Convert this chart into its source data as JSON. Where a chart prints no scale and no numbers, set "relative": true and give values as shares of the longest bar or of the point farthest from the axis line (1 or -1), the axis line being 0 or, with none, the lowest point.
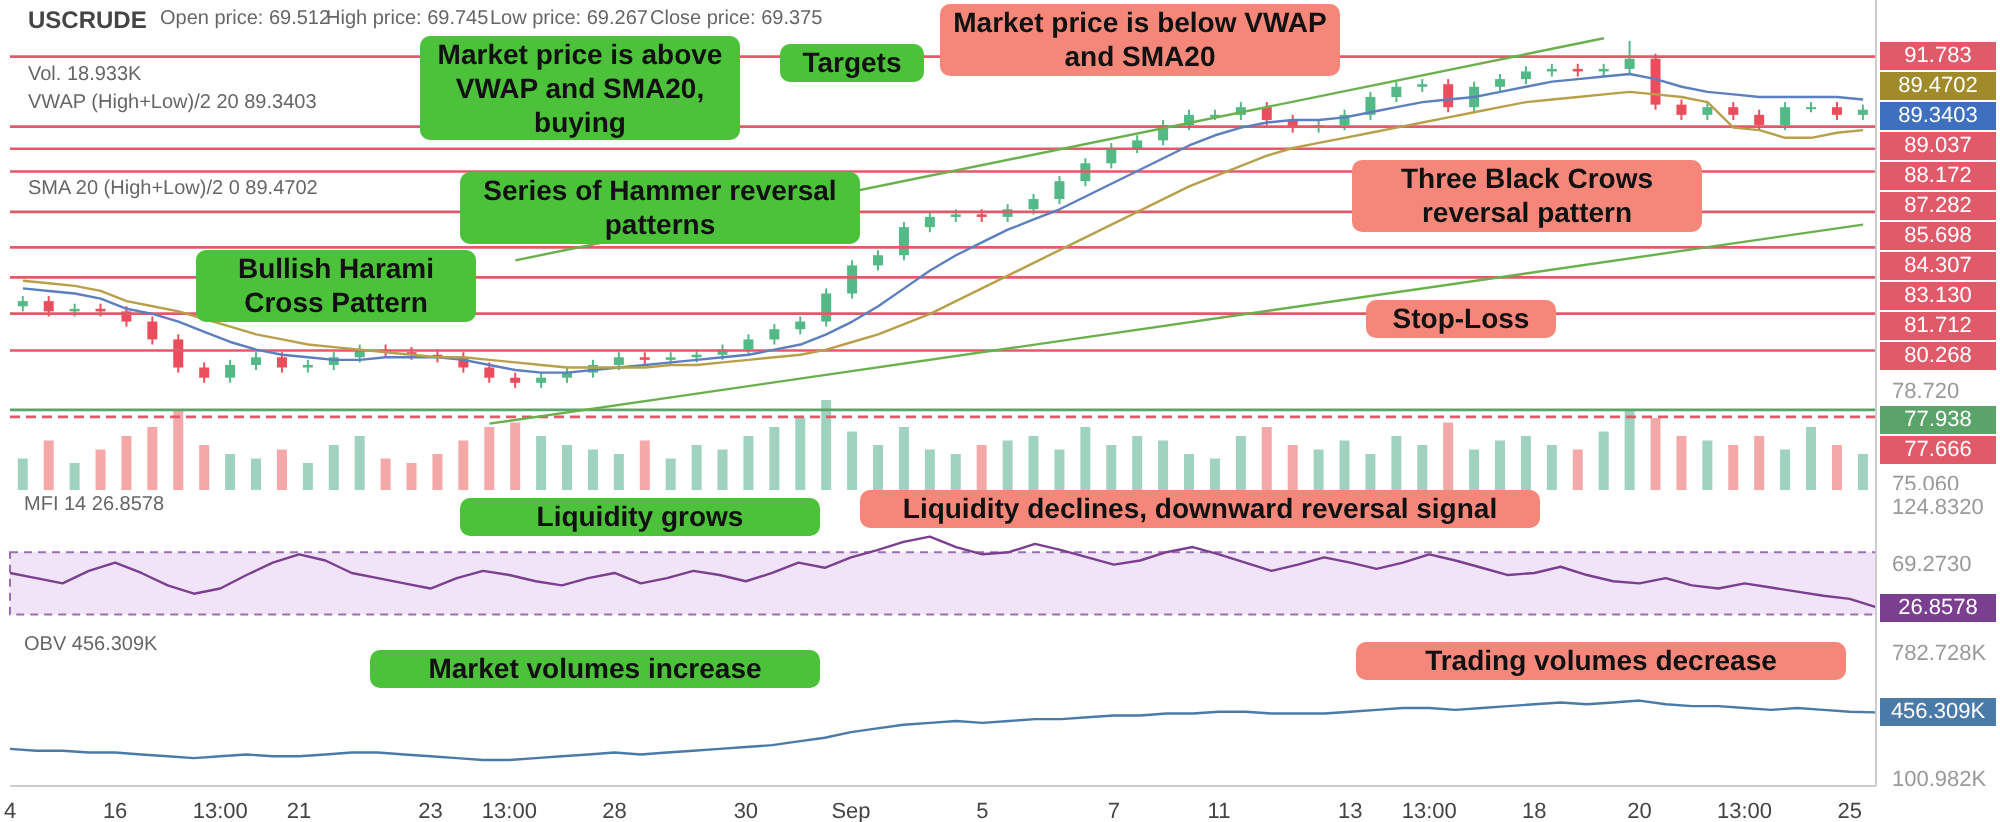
{
  "chart_data": [
    {
      "type": "candlestick",
      "title": "USCRUDE",
      "categories": [
        null,
        null,
        null,
        null,
        null,
        null,
        null,
        null,
        null,
        null,
        null,
        null,
        null,
        null,
        null,
        null,
        null,
        null,
        null,
        null,
        null,
        null,
        null,
        null,
        null,
        null,
        null,
        null,
        null,
        null,
        null,
        null,
        null,
        null,
        null,
        null,
        null,
        null,
        null,
        null,
        null,
        null,
        null,
        null,
        null,
        null,
        null,
        null,
        null,
        null,
        null,
        null,
        null,
        null,
        null,
        null,
        null,
        null,
        null,
        null,
        null,
        null,
        null,
        null,
        null,
        null,
        null,
        null,
        null,
        null,
        null,
        null
      ],
      "ohlc": [
        [
          82.0,
          82.4,
          81.8,
          82.2
        ],
        [
          82.2,
          82.4,
          81.6,
          81.8
        ],
        [
          81.8,
          82.1,
          81.6,
          81.9
        ],
        [
          81.9,
          82.1,
          81.6,
          81.8
        ],
        [
          81.8,
          82.0,
          81.2,
          81.4
        ],
        [
          81.4,
          81.6,
          80.5,
          80.7
        ],
        [
          80.7,
          80.9,
          79.4,
          79.6
        ],
        [
          79.6,
          79.8,
          79.0,
          79.2
        ],
        [
          79.2,
          79.9,
          79.0,
          79.7
        ],
        [
          79.7,
          80.2,
          79.5,
          80.0
        ],
        [
          80.0,
          80.2,
          79.4,
          79.6
        ],
        [
          79.6,
          79.9,
          79.4,
          79.7
        ],
        [
          79.7,
          80.2,
          79.5,
          80.0
        ],
        [
          80.0,
          80.5,
          79.8,
          80.3
        ],
        [
          80.3,
          80.5,
          80.0,
          80.2
        ],
        [
          80.2,
          80.4,
          79.9,
          80.1
        ],
        [
          80.1,
          80.3,
          79.8,
          80.0
        ],
        [
          80.0,
          80.2,
          79.4,
          79.6
        ],
        [
          79.6,
          79.8,
          79.0,
          79.2
        ],
        [
          79.2,
          79.4,
          78.8,
          79.0
        ],
        [
          79.0,
          79.4,
          78.8,
          79.2
        ],
        [
          79.2,
          79.6,
          79.0,
          79.4
        ],
        [
          79.4,
          79.9,
          79.2,
          79.7
        ],
        [
          79.7,
          80.2,
          79.5,
          80.0
        ],
        [
          80.0,
          80.2,
          79.7,
          79.9
        ],
        [
          79.9,
          80.2,
          79.7,
          80.0
        ],
        [
          80.0,
          80.3,
          79.8,
          80.1
        ],
        [
          80.1,
          80.5,
          79.9,
          80.3
        ],
        [
          80.3,
          80.9,
          80.1,
          80.7
        ],
        [
          80.7,
          81.3,
          80.5,
          81.1
        ],
        [
          81.1,
          81.6,
          80.9,
          81.4
        ],
        [
          81.4,
          82.7,
          81.2,
          82.5
        ],
        [
          82.5,
          83.8,
          82.3,
          83.6
        ],
        [
          83.6,
          84.2,
          83.4,
          84.0
        ],
        [
          84.0,
          85.3,
          83.8,
          85.1
        ],
        [
          85.1,
          85.7,
          84.9,
          85.5
        ],
        [
          85.5,
          85.8,
          85.3,
          85.6
        ],
        [
          85.6,
          85.8,
          85.3,
          85.5
        ],
        [
          85.5,
          86.0,
          85.3,
          85.8
        ],
        [
          85.8,
          86.4,
          85.6,
          86.2
        ],
        [
          86.2,
          87.1,
          86.0,
          86.9
        ],
        [
          86.9,
          87.8,
          86.7,
          87.6
        ],
        [
          87.6,
          88.4,
          87.4,
          88.2
        ],
        [
          88.2,
          88.7,
          88.0,
          88.5
        ],
        [
          88.5,
          89.3,
          88.3,
          89.1
        ],
        [
          89.1,
          89.7,
          88.9,
          89.5
        ],
        [
          89.5,
          89.7,
          89.3,
          89.5
        ],
        [
          89.5,
          90.0,
          89.3,
          89.8
        ],
        [
          89.8,
          90.0,
          89.1,
          89.3
        ],
        [
          89.3,
          89.5,
          88.8,
          89.0
        ],
        [
          89.0,
          89.3,
          88.8,
          89.1
        ],
        [
          89.1,
          89.7,
          88.9,
          89.5
        ],
        [
          89.5,
          90.4,
          89.3,
          90.2
        ],
        [
          90.2,
          90.8,
          90.0,
          90.6
        ],
        [
          90.6,
          90.9,
          90.4,
          90.7
        ],
        [
          90.7,
          90.9,
          89.6,
          89.8
        ],
        [
          89.8,
          90.8,
          89.6,
          90.6
        ],
        [
          90.6,
          91.1,
          90.4,
          90.9
        ],
        [
          90.9,
          91.4,
          90.7,
          91.2
        ],
        [
          91.2,
          91.5,
          91.0,
          91.3
        ],
        [
          91.3,
          91.5,
          91.0,
          91.2
        ],
        [
          91.2,
          91.5,
          91.0,
          91.3
        ],
        [
          91.3,
          92.4,
          91.1,
          91.7
        ],
        [
          91.7,
          91.9,
          89.7,
          89.9
        ],
        [
          89.9,
          90.1,
          89.3,
          89.5
        ],
        [
          89.5,
          90.0,
          89.3,
          89.8
        ],
        [
          89.8,
          90.0,
          89.3,
          89.5
        ],
        [
          89.5,
          89.7,
          88.9,
          89.1
        ],
        [
          89.1,
          90.0,
          88.9,
          89.8
        ],
        [
          89.8,
          90.0,
          89.6,
          89.8
        ],
        [
          89.8,
          90.0,
          89.3,
          89.5
        ],
        [
          89.5,
          89.9,
          89.3,
          89.7
        ]
      ],
      "colors": [
        "#53b987",
        "#eb4d5c",
        "#53b987",
        "#eb4d5c",
        "#eb4d5c",
        "#eb4d5c",
        "#eb4d5c",
        "#eb4d5c",
        "#53b987",
        "#53b987",
        "#eb4d5c",
        "#53b987",
        "#53b987",
        "#53b987",
        "#eb4d5c",
        "#eb4d5c",
        "#eb4d5c",
        "#eb4d5c",
        "#eb4d5c",
        "#eb4d5c",
        "#53b987",
        "#53b987",
        "#53b987",
        "#53b987",
        "#eb4d5c",
        "#53b987",
        "#53b987",
        "#53b987",
        "#53b987",
        "#53b987",
        "#53b987",
        "#53b987",
        "#53b987",
        "#53b987",
        "#53b987",
        "#53b987",
        "#53b987",
        "#eb4d5c",
        "#53b987",
        "#53b987",
        "#53b987",
        "#53b987",
        "#53b987",
        "#53b987",
        "#53b987",
        "#53b987",
        "#53b987",
        "#53b987",
        "#eb4d5c",
        "#eb4d5c",
        "#53b987",
        "#53b987",
        "#53b987",
        "#53b987",
        "#53b987",
        "#eb4d5c",
        "#53b987",
        "#53b987",
        "#53b987",
        "#53b987",
        "#eb4d5c",
        "#53b987",
        "#53b987",
        "#eb4d5c",
        "#eb4d5c",
        "#53b987",
        "#eb4d5c",
        "#eb4d5c",
        "#53b987",
        "#53b987",
        "#eb4d5c",
        "#53b987"
      ],
      "series": [
        {
          "type": "line",
          "color": "#5b7fbf",
          "values": [
            82.7,
            82.6,
            82.5,
            82.3,
            81.9,
            81.7,
            81.4,
            81.0,
            80.6,
            80.3,
            80.1,
            80.0,
            79.9,
            79.9,
            80.0,
            80.0,
            80.0,
            79.9,
            79.7,
            79.5,
            79.4,
            79.4,
            79.5,
            79.6,
            79.7,
            79.8,
            79.9,
            80.0,
            80.1,
            80.3,
            80.5,
            80.9,
            81.4,
            82.0,
            82.7,
            83.4,
            84.0,
            84.5,
            85.0,
            85.4,
            85.8,
            86.3,
            86.8,
            87.3,
            87.8,
            88.3,
            88.7,
            89.0,
            89.2,
            89.3,
            89.3,
            89.4,
            89.6,
            89.8,
            90.0,
            90.1,
            90.2,
            90.4,
            90.6,
            90.8,
            90.9,
            91.0,
            91.1,
            90.9,
            90.6,
            90.4,
            90.3,
            90.2,
            90.2,
            90.2,
            90.2,
            90.1
          ]
        },
        {
          "type": "line",
          "color": "#b8a04a",
          "values": [
            83.0,
            82.9,
            82.8,
            82.6,
            82.2,
            82.0,
            81.8,
            81.5,
            81.2,
            80.9,
            80.7,
            80.5,
            80.4,
            80.3,
            80.2,
            80.1,
            80.0,
            80.0,
            79.9,
            79.8,
            79.7,
            79.6,
            79.6,
            79.6,
            79.6,
            79.7,
            79.7,
            79.8,
            79.9,
            80.0,
            80.1,
            80.3,
            80.6,
            80.9,
            81.3,
            81.7,
            82.2,
            82.7,
            83.2,
            83.7,
            84.2,
            84.7,
            85.2,
            85.7,
            86.2,
            86.7,
            87.1,
            87.5,
            87.9,
            88.2,
            88.4,
            88.6,
            88.8,
            89.0,
            89.2,
            89.4,
            89.6,
            89.8,
            90.0,
            90.1,
            90.2,
            90.3,
            90.4,
            90.3,
            90.2,
            90.0,
            89.0,
            88.9,
            88.6,
            88.6,
            88.8,
            88.9
          ]
        },
        {
          "type": "line",
          "color": "#6ab04c",
          "values": [
            null,
            null,
            null,
            null,
            null,
            null,
            null,
            null,
            null,
            null,
            null,
            null,
            null,
            null,
            null,
            null,
            null,
            null,
            null,
            83.8,
            null,
            null,
            null,
            null,
            null,
            null,
            null,
            null,
            null,
            null,
            null,
            null,
            null,
            null,
            null,
            null,
            null,
            null,
            null,
            null,
            null,
            null,
            null,
            null,
            null,
            null,
            null,
            null,
            null,
            null,
            null,
            null,
            null,
            null,
            null,
            null,
            null,
            null,
            null,
            null,
            null,
            92.5,
            null,
            null,
            null,
            null,
            null,
            null,
            null,
            null,
            null,
            null
          ]
        },
        {
          "type": "line",
          "color": "#6ab04c",
          "values": [
            null,
            null,
            null,
            null,
            null,
            null,
            null,
            null,
            null,
            null,
            null,
            null,
            null,
            null,
            null,
            null,
            null,
            null,
            77.4,
            null,
            null,
            null,
            null,
            null,
            null,
            null,
            null,
            null,
            null,
            null,
            null,
            null,
            null,
            null,
            null,
            null,
            null,
            null,
            null,
            null,
            null,
            null,
            null,
            null,
            null,
            null,
            null,
            null,
            null,
            null,
            null,
            null,
            null,
            null,
            null,
            null,
            null,
            null,
            null,
            null,
            null,
            null,
            null,
            null,
            null,
            null,
            null,
            null,
            null,
            null,
            null,
            85.2
          ]
        }
      ],
      "ylim": [
        74.8,
        94
      ],
      "yticks": [
        {
          "value": 78.72,
          "label": "78.720"
        },
        {
          "value": 75.06,
          "label": "75.060"
        }
      ],
      "tick_labels": "y",
      "ref_lines": [
        {
          "axis": "y",
          "value": 91.783,
          "label": "91.783",
          "color": "#e05a6a"
        },
        {
          "axis": "y",
          "value": 89.037,
          "label": "89.037",
          "color": "#e05a6a"
        },
        {
          "axis": "y",
          "value": 88.172,
          "label": "88.172",
          "color": "#e05a6a"
        },
        {
          "axis": "y",
          "value": 87.282,
          "label": "87.282",
          "color": "#e05a6a"
        },
        {
          "axis": "y",
          "value": 85.698,
          "label": "85.698",
          "color": "#e05a6a"
        },
        {
          "axis": "y",
          "value": 84.307,
          "label": "84.307",
          "color": "#e05a6a"
        },
        {
          "axis": "y",
          "value": 83.13,
          "label": "83.130",
          "color": "#e05a6a"
        },
        {
          "axis": "y",
          "value": 81.712,
          "label": "81.712",
          "color": "#e05a6a"
        },
        {
          "axis": "y",
          "value": 80.268,
          "label": "80.268",
          "color": "#e05a6a"
        },
        {
          "axis": "y",
          "value": 77.938,
          "label": "77.938",
          "color": "#5aa469"
        },
        {
          "axis": "y",
          "value": 77.666,
          "label": "77.666",
          "color": "#e05a6a",
          "line_style": "dashed"
        }
      ],
      "annotations": [
        "Open price: 69.512",
        "High price: 69.745",
        "Low price: 69.267",
        "Close price: 69.375",
        "Vol. 18.933K",
        "VWAP (High+Low)/2 20 89.3403",
        "SMA 20 (High+Low)/2 0 89.4702",
        "Market price is above VWAP and SMA20, buying",
        "Targets",
        "Bullish Harami Cross Pattern",
        "Series of Hammer reversal patterns",
        "Market price is below VWAP and SMA20",
        "Three Black Crows reversal pattern",
        "Stop-Loss",
        "89.4702",
        "89.3403"
      ]
    },
    {
      "type": "bar",
      "relative": true,
      "categories": [
        null,
        null,
        null,
        null,
        null,
        null,
        null,
        null,
        null,
        null,
        null,
        null,
        null,
        null,
        null,
        null,
        null,
        null,
        null,
        null,
        null,
        null,
        null,
        null,
        null,
        null,
        null,
        null,
        null,
        null,
        null,
        null,
        null,
        null,
        null,
        null,
        null,
        null,
        null,
        null,
        null,
        null,
        null,
        null,
        null,
        null,
        null,
        null,
        null,
        null,
        null,
        null,
        null,
        null,
        null,
        null,
        null,
        null,
        null,
        null,
        null,
        null,
        null,
        null,
        null,
        null,
        null,
        null,
        null,
        null,
        null,
        null
      ],
      "values": [
        0.35,
        0.55,
        0.3,
        0.45,
        0.6,
        0.7,
        0.9,
        0.5,
        0.4,
        0.35,
        0.45,
        0.3,
        0.5,
        0.6,
        0.35,
        0.3,
        0.4,
        0.55,
        0.7,
        0.75,
        0.6,
        0.5,
        0.45,
        0.4,
        0.55,
        0.35,
        0.5,
        0.45,
        0.6,
        0.7,
        0.8,
        1.0,
        0.65,
        0.5,
        0.7,
        0.45,
        0.4,
        0.5,
        0.55,
        0.6,
        0.45,
        0.7,
        0.5,
        0.6,
        0.55,
        0.4,
        0.35,
        0.6,
        0.7,
        0.5,
        0.45,
        0.55,
        0.4,
        0.6,
        0.5,
        0.75,
        0.45,
        0.55,
        0.6,
        0.5,
        0.45,
        0.65,
        0.9,
        0.8,
        0.6,
        0.55,
        0.5,
        0.6,
        0.45,
        0.7,
        0.5,
        0.4
      ],
      "colors": [
        "#9fd3bf",
        "#f4a9a8",
        "#9fd3bf",
        "#f4a9a8",
        "#f4a9a8",
        "#f4a9a8",
        "#f4a9a8",
        "#f4a9a8",
        "#9fd3bf",
        "#9fd3bf",
        "#f4a9a8",
        "#9fd3bf",
        "#9fd3bf",
        "#9fd3bf",
        "#f4a9a8",
        "#f4a9a8",
        "#f4a9a8",
        "#f4a9a8",
        "#f4a9a8",
        "#f4a9a8",
        "#9fd3bf",
        "#9fd3bf",
        "#9fd3bf",
        "#9fd3bf",
        "#f4a9a8",
        "#9fd3bf",
        "#9fd3bf",
        "#9fd3bf",
        "#9fd3bf",
        "#9fd3bf",
        "#9fd3bf",
        "#9fd3bf",
        "#9fd3bf",
        "#9fd3bf",
        "#9fd3bf",
        "#9fd3bf",
        "#9fd3bf",
        "#f4a9a8",
        "#9fd3bf",
        "#9fd3bf",
        "#9fd3bf",
        "#9fd3bf",
        "#9fd3bf",
        "#9fd3bf",
        "#9fd3bf",
        "#9fd3bf",
        "#9fd3bf",
        "#9fd3bf",
        "#f4a9a8",
        "#f4a9a8",
        "#9fd3bf",
        "#9fd3bf",
        "#9fd3bf",
        "#9fd3bf",
        "#9fd3bf",
        "#f4a9a8",
        "#9fd3bf",
        "#9fd3bf",
        "#9fd3bf",
        "#9fd3bf",
        "#f4a9a8",
        "#9fd3bf",
        "#9fd3bf",
        "#f4a9a8",
        "#f4a9a8",
        "#9fd3bf",
        "#f4a9a8",
        "#f4a9a8",
        "#9fd3bf",
        "#9fd3bf",
        "#f4a9a8",
        "#9fd3bf"
      ],
      "tick_labels": false
    },
    {
      "type": "line",
      "categories": [
        null,
        null,
        null,
        null,
        null,
        null,
        null,
        null,
        null,
        null,
        null,
        null,
        null,
        null,
        null,
        null,
        null,
        null,
        null,
        null,
        null,
        null,
        null,
        null,
        null,
        null,
        null,
        null,
        null,
        null,
        null,
        null,
        null,
        null,
        null,
        null,
        null,
        null,
        null,
        null,
        null,
        null,
        null,
        null,
        null,
        null,
        null,
        null,
        null,
        null,
        null,
        null,
        null,
        null,
        null,
        null,
        null,
        null,
        null,
        null,
        null,
        null,
        null,
        null,
        null,
        null,
        null,
        null,
        null,
        null,
        null,
        null
      ],
      "series": [
        {
          "color": "#7b3f8f",
          "values": [
            60,
            55,
            50,
            62,
            70,
            60,
            48,
            40,
            45,
            58,
            70,
            78,
            72,
            60,
            55,
            50,
            45,
            55,
            62,
            58,
            52,
            48,
            55,
            60,
            50,
            55,
            62,
            58,
            52,
            60,
            70,
            65,
            75,
            82,
            90,
            95,
            85,
            78,
            80,
            88,
            82,
            75,
            68,
            72,
            80,
            85,
            78,
            70,
            62,
            68,
            75,
            70,
            64,
            70,
            78,
            72,
            65,
            58,
            60,
            66,
            58,
            52,
            50,
            55,
            48,
            45,
            50,
            46,
            42,
            38,
            35,
            27
          ]
        }
      ],
      "ylim": [
        5,
        140
      ],
      "yticks": [
        {
          "value": 124.832,
          "label": "124.8320"
        },
        {
          "value": 69.273,
          "label": "69.2730"
        }
      ],
      "tick_labels": "y",
      "bands": [
        {
          "axis": "y",
          "from": 20,
          "to": 80,
          "color": "#f1e4f8"
        }
      ],
      "annotations": [
        "MFI 14 26.8578",
        "Liquidity grows",
        "Liquidity declines, downward reversal signal",
        "26.8578"
      ]
    },
    {
      "type": "line",
      "categories": [
        "4",
        null,
        null,
        null,
        "16",
        null,
        null,
        null,
        "13:00",
        null,
        null,
        "21",
        null,
        null,
        null,
        null,
        "23",
        null,
        null,
        "13:00",
        null,
        null,
        null,
        "28",
        null,
        null,
        null,
        null,
        "30",
        null,
        null,
        null,
        "Sep",
        null,
        null,
        null,
        null,
        "5",
        null,
        null,
        null,
        null,
        "7",
        null,
        null,
        null,
        "11",
        null,
        null,
        null,
        null,
        "13",
        null,
        null,
        "13:00",
        null,
        null,
        null,
        "18",
        null,
        null,
        null,
        "20",
        null,
        null,
        null,
        "13:00",
        null,
        null,
        null,
        "25",
        null
      ],
      "series": [
        {
          "color": "#4a7aa8",
          "values": [
            260,
            250,
            250,
            240,
            240,
            230,
            220,
            210,
            220,
            230,
            220,
            220,
            230,
            240,
            240,
            230,
            220,
            210,
            200,
            200,
            210,
            220,
            230,
            240,
            230,
            240,
            250,
            260,
            270,
            280,
            300,
            320,
            350,
            370,
            390,
            400,
            410,
            400,
            410,
            420,
            420,
            430,
            440,
            440,
            450,
            450,
            460,
            460,
            450,
            450,
            450,
            460,
            470,
            480,
            480,
            470,
            480,
            490,
            500,
            510,
            500,
            510,
            520,
            500,
            490,
            490,
            480,
            470,
            480,
            470,
            460,
            456.309
          ]
        }
      ],
      "ylim": [
        60,
        900
      ],
      "yticks": [
        {
          "value": 782.728,
          "label": "782.728K"
        },
        {
          "value": 100.982,
          "label": "100.982K"
        }
      ],
      "annotations": [
        "OBV 456.309K",
        "Market volumes increase",
        "Trading volumes decrease",
        "456.309K"
      ]
    }
  ]
}
